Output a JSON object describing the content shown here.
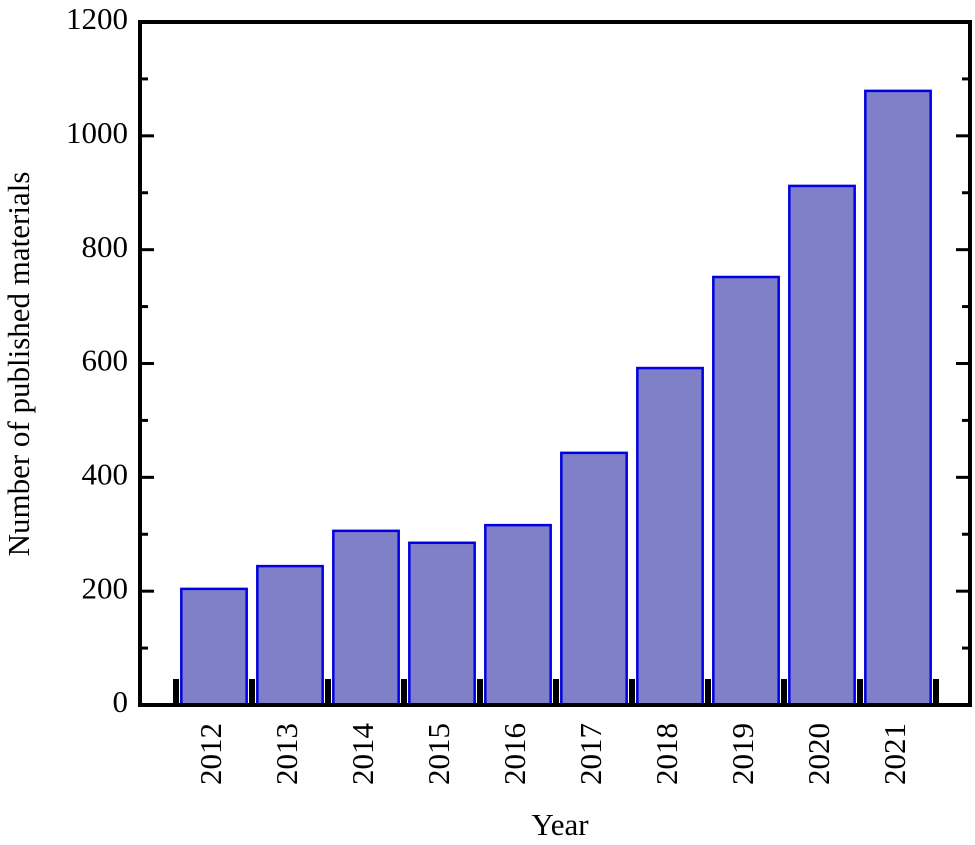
{
  "chart_data": {
    "type": "bar",
    "x_label": "Year",
    "y_label": "Number of published materials",
    "categories": [
      "2012",
      "2013",
      "2014",
      "2015",
      "2016",
      "2017",
      "2018",
      "2019",
      "2020",
      "2021"
    ],
    "values": [
      204,
      244,
      306,
      285,
      316,
      443,
      592,
      752,
      912,
      1079
    ],
    "color": "#8080c8",
    "edge_color": "#0000e0",
    "ylim": [
      0,
      1200
    ],
    "yticks": [
      0,
      200,
      400,
      600,
      800,
      1000,
      1200
    ],
    "grid": false
  }
}
